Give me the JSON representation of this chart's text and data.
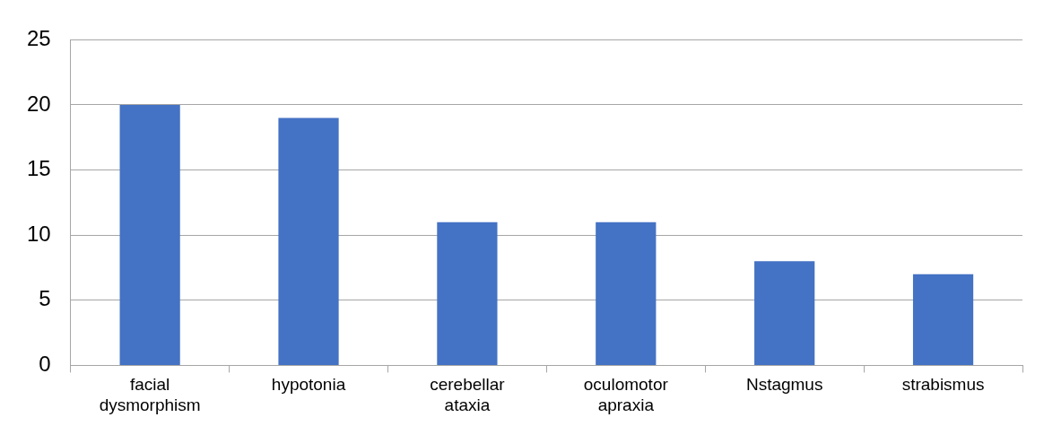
{
  "chart_data": {
    "type": "bar",
    "categories": [
      "facial dysmorphism",
      "hypotonia",
      "cerebellar ataxia",
      "oculomotor apraxia",
      "Nstagmus",
      "strabismus"
    ],
    "values": [
      20,
      19,
      11,
      11,
      8,
      7
    ],
    "color": "#4472c4",
    "ylim": [
      0,
      25
    ],
    "yticks": [
      0,
      5,
      10,
      15,
      20,
      25
    ],
    "grid": "y",
    "legend": false
  }
}
